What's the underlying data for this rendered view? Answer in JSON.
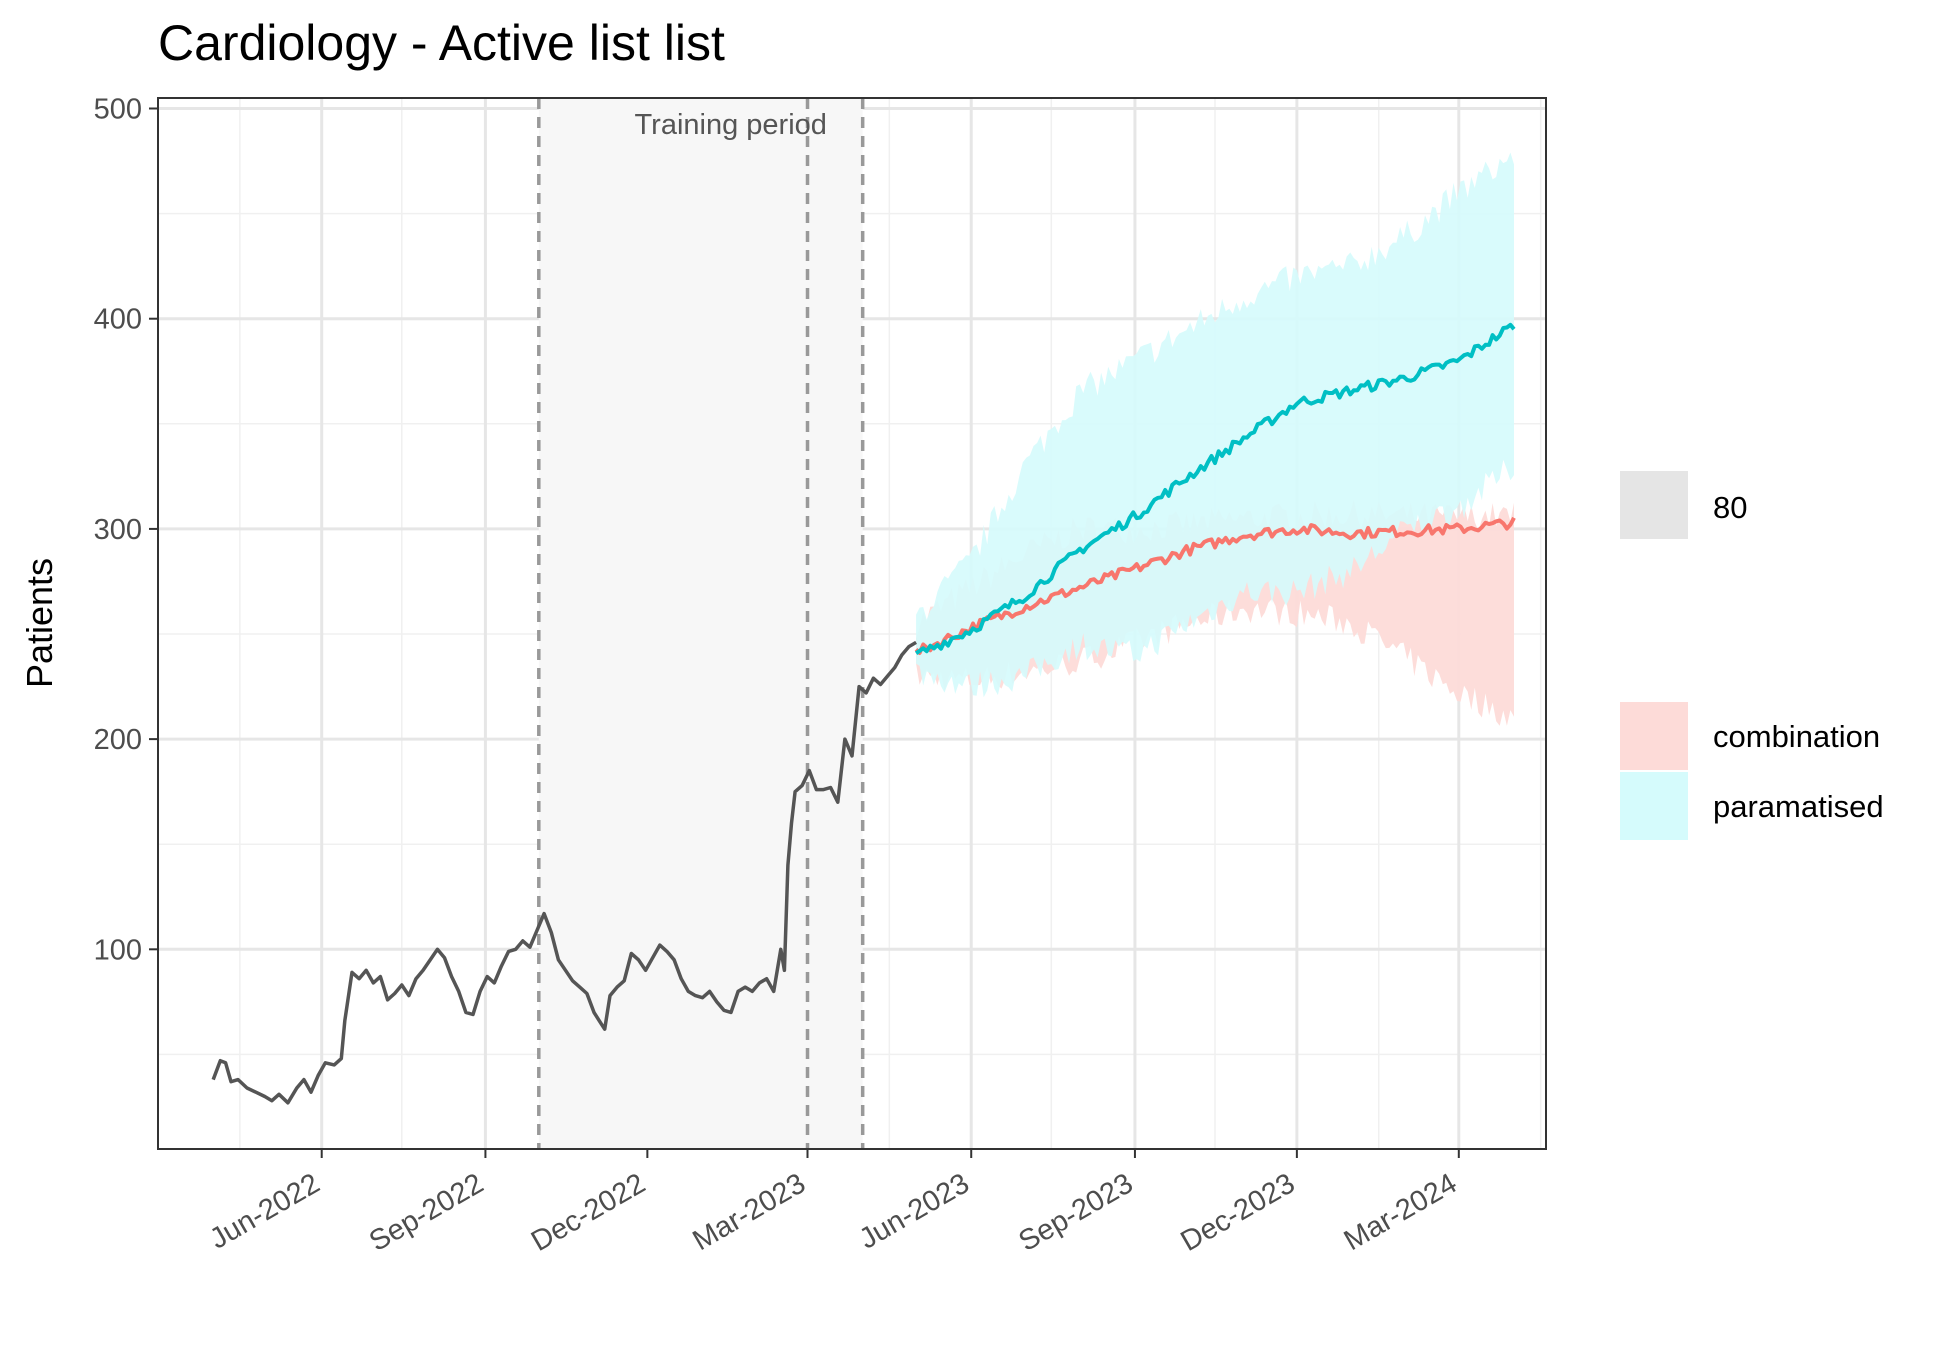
{
  "chart_data": {
    "type": "line",
    "title": "Cardiology - Active list list",
    "xlabel": "",
    "ylabel": "Patients",
    "xlim": [
      "2022-03-01",
      "2024-04-19"
    ],
    "ylim": [
      5,
      505
    ],
    "y_ticks": [
      100,
      200,
      300,
      400,
      500
    ],
    "x_ticks": [
      {
        "date": "2022-06-01",
        "label": "Jun-2022"
      },
      {
        "date": "2022-09-01",
        "label": "Sep-2022"
      },
      {
        "date": "2022-12-01",
        "label": "Dec-2022"
      },
      {
        "date": "2023-03-01",
        "label": "Mar-2023"
      },
      {
        "date": "2023-06-01",
        "label": "Jun-2023"
      },
      {
        "date": "2023-09-01",
        "label": "Sep-2023"
      },
      {
        "date": "2023-12-01",
        "label": "Dec-2023"
      },
      {
        "date": "2024-03-01",
        "label": "Mar-2024"
      }
    ],
    "x_minor_ticks": [
      "2022-04-16",
      "2022-07-16",
      "2022-10-16",
      "2023-01-16",
      "2023-04-16",
      "2023-07-16",
      "2023-10-16",
      "2024-01-16",
      "2024-04-16"
    ],
    "grid": true,
    "shaded_region": {
      "label": "Training period",
      "start": "2022-10-01",
      "end": "2023-04-01",
      "color": "#f7f7f7"
    },
    "vlines": [
      "2022-10-01",
      "2023-03-01",
      "2023-04-01"
    ],
    "observed": {
      "color": "#555555",
      "points": [
        [
          "2022-04-01",
          38
        ],
        [
          "2022-04-05",
          47
        ],
        [
          "2022-04-08",
          46
        ],
        [
          "2022-04-11",
          37
        ],
        [
          "2022-04-15",
          38
        ],
        [
          "2022-04-20",
          34
        ],
        [
          "2022-04-25",
          32
        ],
        [
          "2022-04-30",
          30
        ],
        [
          "2022-05-04",
          28
        ],
        [
          "2022-05-08",
          31
        ],
        [
          "2022-05-13",
          27
        ],
        [
          "2022-05-18",
          34
        ],
        [
          "2022-05-22",
          38
        ],
        [
          "2022-05-26",
          32
        ],
        [
          "2022-05-30",
          40
        ],
        [
          "2022-06-03",
          46
        ],
        [
          "2022-06-08",
          45
        ],
        [
          "2022-06-12",
          48
        ],
        [
          "2022-06-14",
          66
        ],
        [
          "2022-06-18",
          89
        ],
        [
          "2022-06-22",
          86
        ],
        [
          "2022-06-26",
          90
        ],
        [
          "2022-06-30",
          84
        ],
        [
          "2022-07-04",
          87
        ],
        [
          "2022-07-08",
          76
        ],
        [
          "2022-07-12",
          79
        ],
        [
          "2022-07-16",
          83
        ],
        [
          "2022-07-20",
          78
        ],
        [
          "2022-07-24",
          86
        ],
        [
          "2022-07-28",
          90
        ],
        [
          "2022-08-01",
          95
        ],
        [
          "2022-08-05",
          100
        ],
        [
          "2022-08-09",
          96
        ],
        [
          "2022-08-13",
          87
        ],
        [
          "2022-08-17",
          80
        ],
        [
          "2022-08-21",
          70
        ],
        [
          "2022-08-25",
          69
        ],
        [
          "2022-08-29",
          80
        ],
        [
          "2022-09-02",
          87
        ],
        [
          "2022-09-06",
          84
        ],
        [
          "2022-09-10",
          92
        ],
        [
          "2022-09-14",
          99
        ],
        [
          "2022-09-18",
          100
        ],
        [
          "2022-09-22",
          104
        ],
        [
          "2022-09-26",
          101
        ],
        [
          "2022-09-30",
          109
        ],
        [
          "2022-10-04",
          117
        ],
        [
          "2022-10-08",
          108
        ],
        [
          "2022-10-12",
          95
        ],
        [
          "2022-10-16",
          90
        ],
        [
          "2022-10-20",
          85
        ],
        [
          "2022-10-24",
          82
        ],
        [
          "2022-10-28",
          79
        ],
        [
          "2022-11-01",
          70
        ],
        [
          "2022-11-04",
          66
        ],
        [
          "2022-11-07",
          62
        ],
        [
          "2022-11-10",
          78
        ],
        [
          "2022-11-14",
          82
        ],
        [
          "2022-11-18",
          85
        ],
        [
          "2022-11-22",
          98
        ],
        [
          "2022-11-26",
          95
        ],
        [
          "2022-11-30",
          90
        ],
        [
          "2022-12-04",
          96
        ],
        [
          "2022-12-08",
          102
        ],
        [
          "2022-12-12",
          99
        ],
        [
          "2022-12-16",
          95
        ],
        [
          "2022-12-20",
          86
        ],
        [
          "2022-12-24",
          80
        ],
        [
          "2022-12-28",
          78
        ],
        [
          "2023-01-01",
          77
        ],
        [
          "2023-01-05",
          80
        ],
        [
          "2023-01-09",
          75
        ],
        [
          "2023-01-13",
          71
        ],
        [
          "2023-01-17",
          70
        ],
        [
          "2023-01-21",
          80
        ],
        [
          "2023-01-25",
          82
        ],
        [
          "2023-01-29",
          80
        ],
        [
          "2023-02-02",
          84
        ],
        [
          "2023-02-06",
          86
        ],
        [
          "2023-02-10",
          80
        ],
        [
          "2023-02-14",
          100
        ],
        [
          "2023-02-16",
          90
        ],
        [
          "2023-02-18",
          140
        ],
        [
          "2023-02-20",
          160
        ],
        [
          "2023-02-22",
          175
        ],
        [
          "2023-02-26",
          178
        ],
        [
          "2023-03-02",
          185
        ],
        [
          "2023-03-06",
          176
        ],
        [
          "2023-03-10",
          176
        ],
        [
          "2023-03-14",
          177
        ],
        [
          "2023-03-18",
          170
        ],
        [
          "2023-03-22",
          200
        ],
        [
          "2023-03-26",
          192
        ],
        [
          "2023-03-30",
          225
        ],
        [
          "2023-04-03",
          222
        ],
        [
          "2023-04-07",
          229
        ],
        [
          "2023-04-11",
          226
        ],
        [
          "2023-04-15",
          230
        ],
        [
          "2023-04-19",
          234
        ],
        [
          "2023-04-23",
          240
        ],
        [
          "2023-04-27",
          244
        ],
        [
          "2023-05-01",
          246
        ]
      ]
    },
    "series": [
      {
        "name": "combination",
        "line_color": "#f8766d",
        "fill_color": "#fddbd8",
        "x": [
          "2023-05-01",
          "2023-06-01",
          "2023-07-01",
          "2023-08-01",
          "2023-09-01",
          "2023-10-01",
          "2023-11-01",
          "2023-12-01",
          "2024-01-01",
          "2024-02-01",
          "2024-03-01",
          "2024-04-01"
        ],
        "mean": [
          241,
          253,
          263,
          272,
          281,
          290,
          297,
          300,
          298,
          299,
          300,
          303
        ],
        "lower": [
          230,
          228,
          232,
          237,
          246,
          255,
          262,
          260,
          255,
          238,
          222,
          210
        ],
        "upper": [
          255,
          272,
          288,
          300,
          300,
          302,
          305,
          306,
          307,
          306,
          306,
          306
        ]
      },
      {
        "name": "paramatised",
        "line_color": "#00bfc4",
        "fill_color": "#d5fbfc",
        "x": [
          "2023-05-01",
          "2023-06-01",
          "2023-07-01",
          "2023-08-01",
          "2023-09-01",
          "2023-10-01",
          "2023-11-01",
          "2023-12-01",
          "2024-01-01",
          "2024-02-01",
          "2024-03-01",
          "2024-04-01"
        ],
        "mean": [
          240,
          252,
          268,
          290,
          306,
          325,
          343,
          360,
          366,
          372,
          380,
          397
        ],
        "lower": [
          232,
          225,
          230,
          245,
          240,
          255,
          270,
          270,
          280,
          300,
          310,
          330
        ],
        "upper": [
          258,
          285,
          330,
          365,
          380,
          395,
          410,
          420,
          425,
          440,
          460,
          478
        ]
      }
    ],
    "overlap_fill_color": "#e0f0f0",
    "legend": {
      "position": "right",
      "level_label": "80",
      "level_swatch_color": "#e5e5e5",
      "entries": [
        {
          "label": "combination",
          "color": "#fddbd8"
        },
        {
          "label": "paramatised",
          "color": "#d5fbfc"
        }
      ]
    }
  }
}
